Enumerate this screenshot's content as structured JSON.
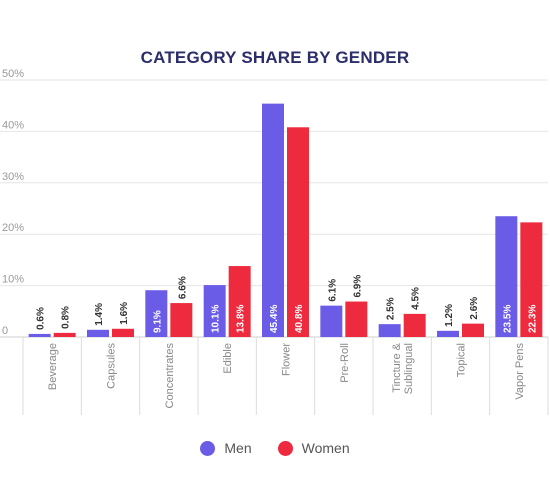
{
  "chart_data": {
    "type": "bar",
    "title": "CATEGORY SHARE BY GENDER",
    "categories": [
      "Beverage",
      "Capsules",
      "Concentrates",
      "Edible",
      "Flower",
      "Pre-Roll",
      "Tincture & Sublingual",
      "Topical",
      "Vapor Pens"
    ],
    "category_lines": [
      [
        "Beverage"
      ],
      [
        "Capsules"
      ],
      [
        "Concentrates"
      ],
      [
        "Edible"
      ],
      [
        "Flower"
      ],
      [
        "Pre-Roll"
      ],
      [
        "Tincture &",
        "Sublingual"
      ],
      [
        "Topical"
      ],
      [
        "Vapor Pens"
      ]
    ],
    "series": [
      {
        "name": "Men",
        "color": "#6b5ce7",
        "values": [
          0.6,
          1.4,
          9.1,
          10.1,
          45.4,
          6.1,
          2.5,
          1.2,
          23.5
        ],
        "labels": [
          "0.6%",
          "1.4%",
          "9.1%",
          "10.1%",
          "45.4%",
          "6.1%",
          "2.5%",
          "1.2%",
          "23.5%"
        ]
      },
      {
        "name": "Women",
        "color": "#ee2a3e",
        "values": [
          0.8,
          1.6,
          6.6,
          13.8,
          40.8,
          6.9,
          4.5,
          2.6,
          22.3
        ],
        "labels": [
          "0.8%",
          "1.6%",
          "6.6%",
          "13.8%",
          "40.8%",
          "6.9%",
          "4.5%",
          "2.6%",
          "22.3%"
        ]
      }
    ],
    "ylim": [
      0,
      50
    ],
    "yticks": [
      0,
      10,
      20,
      30,
      40,
      50
    ],
    "ytick_labels": [
      "0",
      "10%",
      "20%",
      "30%",
      "40%",
      "50%"
    ],
    "grid": true,
    "legend_position": "bottom-center"
  }
}
